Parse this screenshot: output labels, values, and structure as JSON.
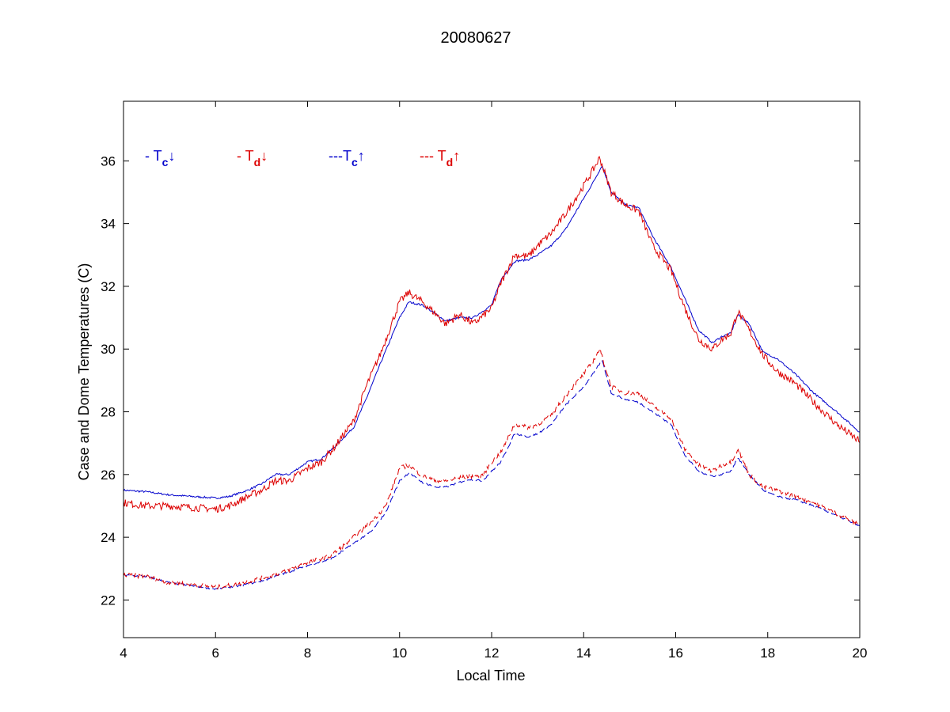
{
  "chart_data": {
    "type": "line",
    "title": "20080627",
    "xlabel": "Local Time",
    "ylabel": "Case and Dome Temperatures (C)",
    "xlim": [
      4,
      20
    ],
    "ylim": [
      20.8,
      37.9
    ],
    "xticks": [
      4,
      6,
      8,
      10,
      12,
      14,
      16,
      18,
      20
    ],
    "yticks": [
      22,
      24,
      26,
      28,
      30,
      32,
      34,
      36
    ],
    "grid": false,
    "legend": {
      "placement": "top-left",
      "entries": [
        {
          "prefix": "- T",
          "sub": "c",
          "arrow": "↓",
          "color": "#0000cc"
        },
        {
          "prefix": "- T",
          "sub": "d",
          "arrow": "↓",
          "color": "#dd0000"
        },
        {
          "prefix": "---T",
          "sub": "c",
          "arrow": "↑",
          "color": "#0000cc"
        },
        {
          "prefix": "--- T",
          "sub": "d",
          "arrow": "↑",
          "color": "#dd0000"
        }
      ]
    },
    "series": [
      {
        "key": "Tc_down",
        "color": "#0000cc",
        "dash": false,
        "noise": 0.03,
        "x": [
          4.0,
          4.5,
          5.0,
          5.5,
          6.0,
          6.3,
          6.7,
          7.0,
          7.3,
          7.6,
          8.0,
          8.3,
          8.6,
          9.0,
          9.3,
          9.6,
          10.0,
          10.2,
          10.5,
          10.8,
          11.0,
          11.3,
          11.6,
          12.0,
          12.2,
          12.5,
          12.8,
          13.0,
          13.3,
          13.6,
          14.0,
          14.2,
          14.4,
          14.6,
          14.9,
          15.2,
          15.5,
          15.9,
          16.2,
          16.5,
          16.8,
          17.0,
          17.2,
          17.35,
          17.6,
          17.9,
          18.2,
          18.6,
          19.0,
          19.5,
          20.0
        ],
        "y": [
          25.5,
          25.45,
          25.35,
          25.3,
          25.25,
          25.3,
          25.5,
          25.7,
          26.0,
          26.0,
          26.4,
          26.5,
          26.9,
          27.5,
          28.5,
          29.6,
          31.0,
          31.5,
          31.4,
          31.1,
          30.9,
          31.0,
          31.0,
          31.4,
          32.2,
          32.8,
          32.85,
          33.0,
          33.3,
          33.8,
          34.8,
          35.3,
          35.85,
          35.0,
          34.6,
          34.5,
          33.6,
          32.6,
          31.6,
          30.6,
          30.2,
          30.4,
          30.5,
          31.1,
          30.8,
          29.9,
          29.7,
          29.2,
          28.6,
          28.0,
          27.35
        ]
      },
      {
        "key": "Td_down",
        "color": "#dd0000",
        "dash": false,
        "noise": 0.12,
        "x": [
          4.0,
          4.5,
          5.0,
          5.5,
          6.0,
          6.3,
          6.7,
          7.0,
          7.3,
          7.6,
          8.0,
          8.3,
          8.6,
          9.0,
          9.3,
          9.6,
          10.0,
          10.2,
          10.5,
          10.8,
          11.0,
          11.3,
          11.6,
          12.0,
          12.2,
          12.5,
          12.8,
          13.0,
          13.3,
          13.6,
          14.0,
          14.2,
          14.35,
          14.6,
          14.9,
          15.2,
          15.5,
          15.9,
          16.2,
          16.5,
          16.8,
          17.0,
          17.2,
          17.35,
          17.6,
          17.9,
          18.2,
          18.6,
          19.0,
          19.5,
          20.0
        ],
        "y": [
          25.1,
          25.0,
          25.0,
          24.95,
          24.9,
          25.0,
          25.3,
          25.5,
          25.8,
          25.8,
          26.2,
          26.4,
          26.9,
          27.7,
          28.9,
          29.9,
          31.5,
          31.8,
          31.5,
          31.1,
          30.8,
          31.1,
          30.8,
          31.3,
          32.1,
          33.0,
          32.95,
          33.3,
          33.7,
          34.3,
          35.2,
          35.7,
          36.1,
          35.0,
          34.6,
          34.4,
          33.3,
          32.5,
          31.3,
          30.3,
          30.0,
          30.3,
          30.5,
          31.2,
          30.6,
          29.8,
          29.3,
          28.9,
          28.3,
          27.6,
          27.05
        ]
      },
      {
        "key": "Tc_up",
        "color": "#0000cc",
        "dash": true,
        "noise": 0.03,
        "x": [
          4.0,
          4.5,
          5.0,
          5.5,
          6.0,
          6.5,
          7.0,
          7.5,
          8.0,
          8.5,
          9.0,
          9.4,
          9.7,
          10.0,
          10.2,
          10.5,
          10.8,
          11.0,
          11.5,
          11.8,
          12.0,
          12.2,
          12.5,
          12.8,
          13.0,
          13.3,
          13.6,
          14.0,
          14.2,
          14.4,
          14.6,
          14.9,
          15.2,
          15.5,
          15.9,
          16.2,
          16.5,
          16.8,
          17.0,
          17.2,
          17.35,
          17.6,
          17.9,
          18.2,
          18.6,
          19.0,
          19.5,
          20.0
        ],
        "y": [
          22.8,
          22.75,
          22.55,
          22.45,
          22.35,
          22.45,
          22.6,
          22.85,
          23.1,
          23.3,
          23.8,
          24.2,
          24.8,
          25.8,
          26.05,
          25.75,
          25.6,
          25.6,
          25.85,
          25.8,
          26.1,
          26.4,
          27.3,
          27.2,
          27.3,
          27.6,
          28.2,
          28.8,
          29.2,
          29.65,
          28.6,
          28.4,
          28.3,
          28.0,
          27.6,
          26.6,
          26.1,
          25.95,
          26.0,
          26.1,
          26.55,
          26.0,
          25.5,
          25.3,
          25.2,
          25.0,
          24.7,
          24.35
        ]
      },
      {
        "key": "Td_up",
        "color": "#dd0000",
        "dash": true,
        "noise": 0.07,
        "x": [
          4.0,
          4.5,
          5.0,
          5.5,
          6.0,
          6.5,
          7.0,
          7.5,
          8.0,
          8.5,
          9.0,
          9.4,
          9.7,
          10.0,
          10.2,
          10.5,
          10.8,
          11.0,
          11.5,
          11.8,
          12.0,
          12.2,
          12.5,
          12.8,
          13.0,
          13.3,
          13.6,
          14.0,
          14.2,
          14.35,
          14.6,
          14.9,
          15.2,
          15.5,
          15.9,
          16.2,
          16.5,
          16.8,
          17.0,
          17.2,
          17.35,
          17.6,
          17.9,
          18.2,
          18.6,
          19.0,
          19.5,
          20.0
        ],
        "y": [
          22.8,
          22.75,
          22.55,
          22.5,
          22.4,
          22.5,
          22.7,
          22.9,
          23.2,
          23.4,
          24.0,
          24.5,
          25.0,
          26.2,
          26.3,
          25.95,
          25.8,
          25.8,
          25.95,
          25.95,
          26.4,
          26.7,
          27.6,
          27.5,
          27.6,
          27.9,
          28.5,
          29.2,
          29.6,
          30.0,
          28.8,
          28.6,
          28.6,
          28.2,
          27.8,
          26.8,
          26.3,
          26.1,
          26.3,
          26.4,
          26.8,
          26.0,
          25.6,
          25.5,
          25.3,
          25.1,
          24.75,
          24.4
        ]
      }
    ]
  }
}
